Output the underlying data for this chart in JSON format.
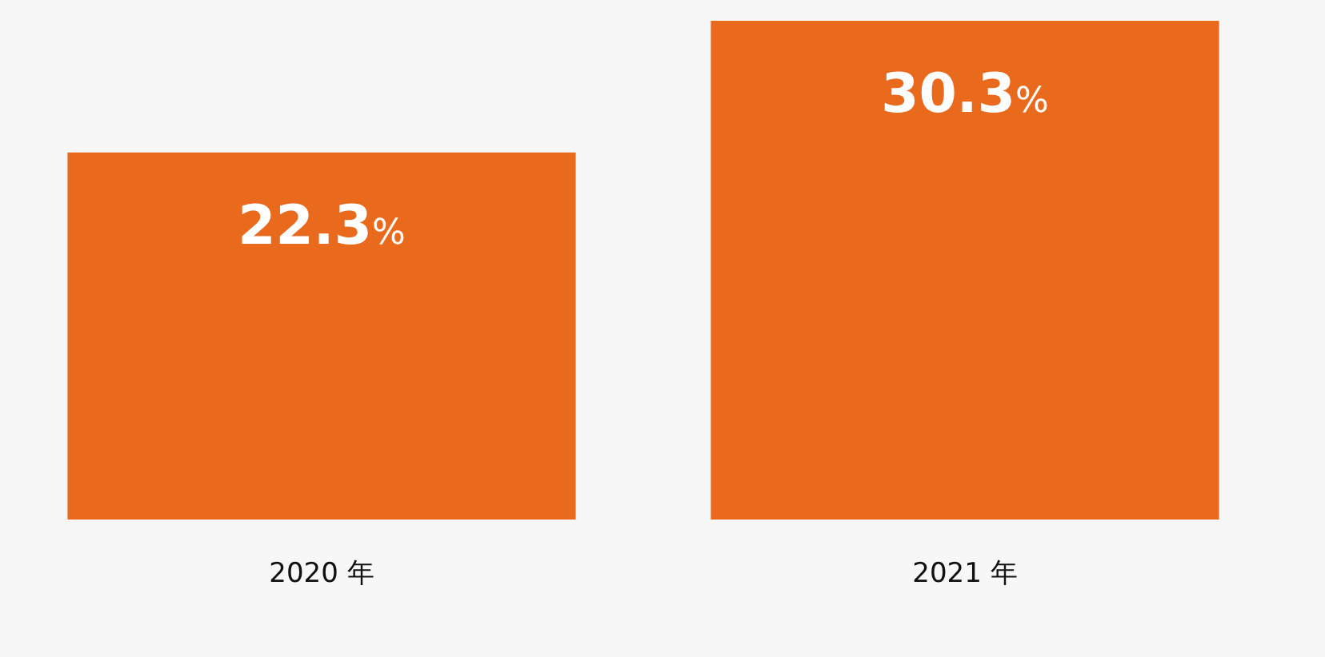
{
  "chart_data": {
    "type": "bar",
    "categories": [
      "2020 年",
      "2021 年"
    ],
    "values": [
      22.3,
      30.3
    ],
    "value_labels": [
      "22.3%",
      "30.3%"
    ],
    "color": "#e9691d"
  }
}
